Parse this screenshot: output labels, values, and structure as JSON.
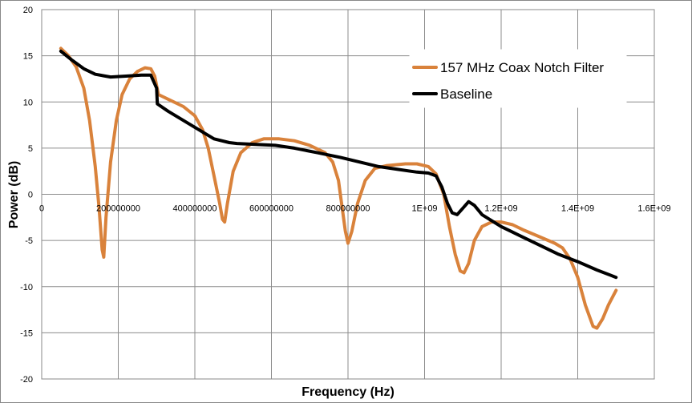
{
  "chart_data": {
    "type": "line",
    "title": "",
    "xlabel": "Frequency (Hz)",
    "ylabel": "Power (dB)",
    "xlim": [
      0,
      1600000000
    ],
    "ylim": [
      -20,
      20
    ],
    "x_ticks": [
      {
        "value": 0,
        "label": "0"
      },
      {
        "value": 200000000,
        "label": "200000000"
      },
      {
        "value": 400000000,
        "label": "400000000"
      },
      {
        "value": 600000000,
        "label": "600000000"
      },
      {
        "value": 800000000,
        "label": "800000000"
      },
      {
        "value": 1000000000,
        "label": "1E+09"
      },
      {
        "value": 1200000000,
        "label": "1.2E+09"
      },
      {
        "value": 1400000000,
        "label": "1.4E+09"
      },
      {
        "value": 1600000000,
        "label": "1.6E+09"
      }
    ],
    "y_ticks": [
      {
        "value": 20,
        "label": "20"
      },
      {
        "value": 15,
        "label": "15"
      },
      {
        "value": 10,
        "label": "10"
      },
      {
        "value": 5,
        "label": "5"
      },
      {
        "value": 0,
        "label": "0"
      },
      {
        "value": -5,
        "label": "-5"
      },
      {
        "value": -10,
        "label": "-10"
      },
      {
        "value": -15,
        "label": "-15"
      },
      {
        "value": -20,
        "label": "-20"
      }
    ],
    "grid": true,
    "legend": {
      "placement": "top-right"
    },
    "series": [
      {
        "name": "157 MHz Coax Notch Filter",
        "color": "#d9823b",
        "points": [
          [
            50000000,
            15.8
          ],
          [
            70000000,
            15.0
          ],
          [
            90000000,
            13.8
          ],
          [
            110000000,
            11.5
          ],
          [
            125000000,
            8.0
          ],
          [
            140000000,
            3.0
          ],
          [
            150000000,
            -1.5
          ],
          [
            158000000,
            -6.0
          ],
          [
            162000000,
            -6.8
          ],
          [
            168000000,
            -2.5
          ],
          [
            180000000,
            3.5
          ],
          [
            195000000,
            8.0
          ],
          [
            210000000,
            10.8
          ],
          [
            230000000,
            12.5
          ],
          [
            250000000,
            13.3
          ],
          [
            270000000,
            13.7
          ],
          [
            285000000,
            13.6
          ],
          [
            295000000,
            12.8
          ],
          [
            305000000,
            10.8
          ],
          [
            330000000,
            10.3
          ],
          [
            370000000,
            9.5
          ],
          [
            400000000,
            8.5
          ],
          [
            420000000,
            7.0
          ],
          [
            435000000,
            5.0
          ],
          [
            450000000,
            2.0
          ],
          [
            465000000,
            -1.0
          ],
          [
            472000000,
            -2.7
          ],
          [
            478000000,
            -3.0
          ],
          [
            485000000,
            -1.0
          ],
          [
            500000000,
            2.5
          ],
          [
            520000000,
            4.5
          ],
          [
            550000000,
            5.6
          ],
          [
            580000000,
            6.0
          ],
          [
            620000000,
            6.0
          ],
          [
            660000000,
            5.8
          ],
          [
            700000000,
            5.3
          ],
          [
            740000000,
            4.5
          ],
          [
            760000000,
            3.5
          ],
          [
            775000000,
            1.5
          ],
          [
            785000000,
            -1.5
          ],
          [
            793000000,
            -4.0
          ],
          [
            800000000,
            -5.3
          ],
          [
            810000000,
            -4.0
          ],
          [
            825000000,
            -1.0
          ],
          [
            845000000,
            1.5
          ],
          [
            870000000,
            2.8
          ],
          [
            900000000,
            3.1
          ],
          [
            950000000,
            3.3
          ],
          [
            980000000,
            3.3
          ],
          [
            1010000000,
            3.0
          ],
          [
            1030000000,
            2.2
          ],
          [
            1050000000,
            0.0
          ],
          [
            1065000000,
            -3.5
          ],
          [
            1080000000,
            -6.5
          ],
          [
            1093000000,
            -8.3
          ],
          [
            1103000000,
            -8.5
          ],
          [
            1115000000,
            -7.5
          ],
          [
            1130000000,
            -5.0
          ],
          [
            1150000000,
            -3.5
          ],
          [
            1175000000,
            -3.0
          ],
          [
            1200000000,
            -3.0
          ],
          [
            1230000000,
            -3.3
          ],
          [
            1260000000,
            -3.9
          ],
          [
            1300000000,
            -4.6
          ],
          [
            1340000000,
            -5.3
          ],
          [
            1360000000,
            -5.8
          ],
          [
            1380000000,
            -7.0
          ],
          [
            1400000000,
            -9.0
          ],
          [
            1420000000,
            -12.0
          ],
          [
            1440000000,
            -14.3
          ],
          [
            1450000000,
            -14.5
          ],
          [
            1465000000,
            -13.5
          ],
          [
            1480000000,
            -12.0
          ],
          [
            1500000000,
            -10.4
          ]
        ]
      },
      {
        "name": "Baseline",
        "color": "#000000",
        "points": [
          [
            50000000,
            15.5
          ],
          [
            80000000,
            14.5
          ],
          [
            110000000,
            13.6
          ],
          [
            140000000,
            13.0
          ],
          [
            180000000,
            12.7
          ],
          [
            220000000,
            12.8
          ],
          [
            260000000,
            12.9
          ],
          [
            285000000,
            12.9
          ],
          [
            300000000,
            11.5
          ],
          [
            302000000,
            9.8
          ],
          [
            330000000,
            9.0
          ],
          [
            370000000,
            8.0
          ],
          [
            410000000,
            7.0
          ],
          [
            450000000,
            6.0
          ],
          [
            490000000,
            5.6
          ],
          [
            510000000,
            5.5
          ],
          [
            560000000,
            5.4
          ],
          [
            610000000,
            5.3
          ],
          [
            660000000,
            5.0
          ],
          [
            720000000,
            4.5
          ],
          [
            780000000,
            4.0
          ],
          [
            830000000,
            3.5
          ],
          [
            880000000,
            3.0
          ],
          [
            930000000,
            2.7
          ],
          [
            980000000,
            2.4
          ],
          [
            1010000000,
            2.3
          ],
          [
            1030000000,
            2.0
          ],
          [
            1045000000,
            0.8
          ],
          [
            1060000000,
            -1.0
          ],
          [
            1072000000,
            -2.0
          ],
          [
            1085000000,
            -2.2
          ],
          [
            1100000000,
            -1.5
          ],
          [
            1115000000,
            -0.8
          ],
          [
            1130000000,
            -1.2
          ],
          [
            1150000000,
            -2.2
          ],
          [
            1200000000,
            -3.5
          ],
          [
            1250000000,
            -4.5
          ],
          [
            1300000000,
            -5.5
          ],
          [
            1350000000,
            -6.5
          ],
          [
            1400000000,
            -7.3
          ],
          [
            1450000000,
            -8.2
          ],
          [
            1500000000,
            -9.0
          ]
        ]
      }
    ]
  }
}
